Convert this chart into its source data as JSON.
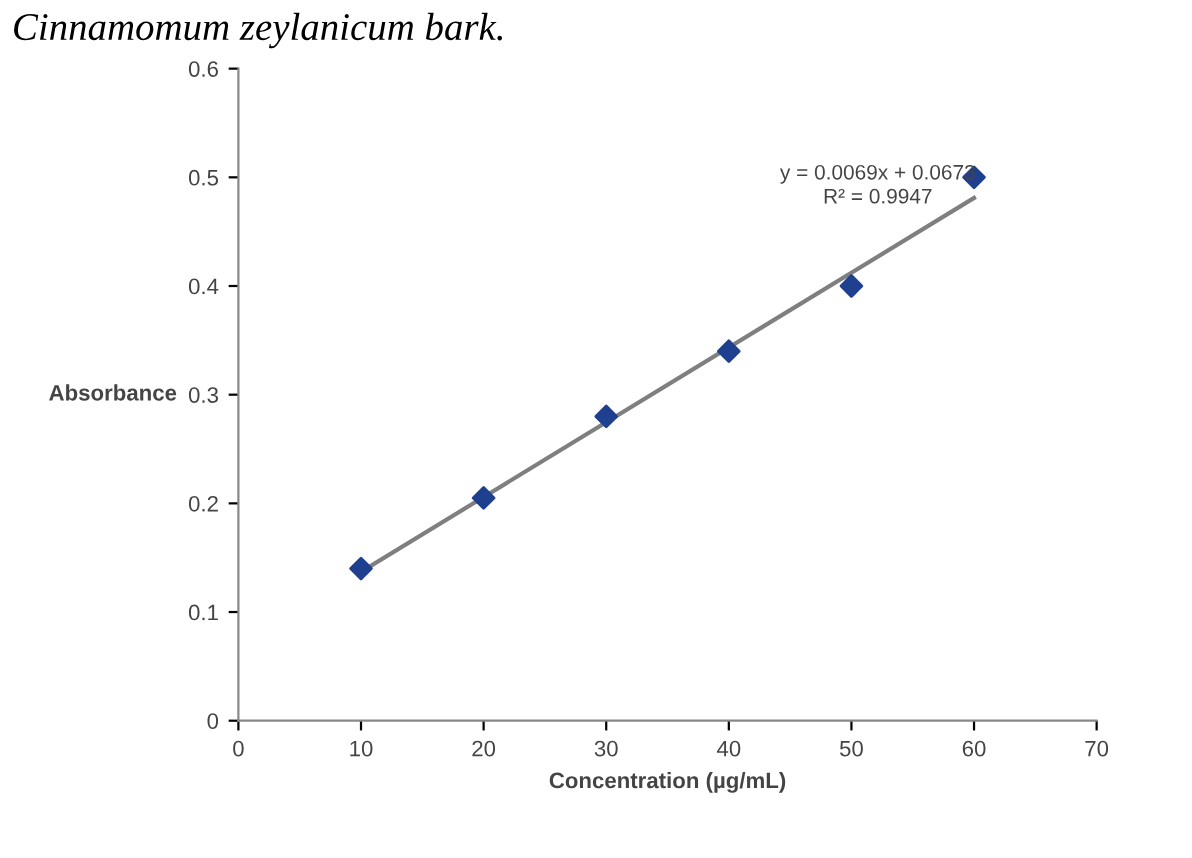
{
  "chart_data": {
    "type": "scatter",
    "xlabel": "Concentration (µg/mL)",
    "ylabel": "Absorbance",
    "x": [
      10,
      20,
      30,
      40,
      50,
      60
    ],
    "series": [
      {
        "color": "#1f3f8f",
        "marker": "diamond",
        "values": [
          0.14,
          0.205,
          0.28,
          0.34,
          0.4,
          0.5
        ]
      },
      {
        "type": "line",
        "color": "#7f7f7f",
        "x": [
          10,
          60
        ],
        "values": [
          0.137,
          0.481
        ],
        "marker": "none",
        "line_style": "solid"
      }
    ],
    "annotations": [
      "y = 0.0069x + 0.0673\nR² = 0.9947",
      "Cinnamomum zeylanicum bark."
    ],
    "xlim": [
      0,
      70
    ],
    "xticks": [
      0,
      10,
      20,
      30,
      40,
      50,
      60,
      70
    ],
    "ylim": [
      0,
      0.6
    ],
    "yticks": [
      0,
      0.1,
      0.2,
      0.3,
      0.4,
      0.5,
      0.6
    ],
    "grid": false,
    "legend": false
  }
}
